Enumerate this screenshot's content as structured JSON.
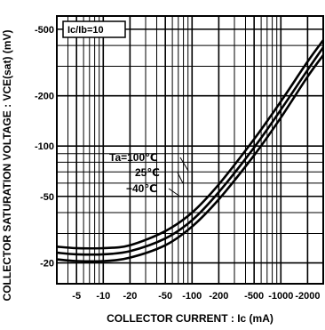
{
  "chart_data": {
    "type": "line",
    "condition_label": "Ic/Ib=10",
    "xlabel": "COLLECTOR CURRENT : Ic  (mA)",
    "ylabel": "COLLECTOR SATURATION VOLTAGE : VCE(sat)  (mV)",
    "x_scale": "log",
    "y_scale": "log",
    "xlim": [
      -3,
      -3000
    ],
    "ylim": [
      -15,
      -600
    ],
    "x_ticks": [
      {
        "value": -5,
        "label": "-5"
      },
      {
        "value": -10,
        "label": "-10"
      },
      {
        "value": -20,
        "label": "-20"
      },
      {
        "value": -50,
        "label": "-50"
      },
      {
        "value": -100,
        "label": "-100"
      },
      {
        "value": -200,
        "label": "-200"
      },
      {
        "value": -500,
        "label": "-500"
      },
      {
        "value": -1000,
        "label": "-1000"
      },
      {
        "value": -2000,
        "label": "-2000"
      }
    ],
    "y_ticks": [
      {
        "value": -20,
        "label": "-20"
      },
      {
        "value": -50,
        "label": "-50"
      },
      {
        "value": -100,
        "label": "-100"
      },
      {
        "value": -200,
        "label": "-200"
      },
      {
        "value": -500,
        "label": "-500"
      }
    ],
    "grid": true,
    "legend": "inline labels at left of curves",
    "series": [
      {
        "name": "Ta=100℃",
        "x": [
          -3,
          -5,
          -10,
          -20,
          -50,
          -100,
          -200,
          -500,
          -1000,
          -2000,
          -3000
        ],
        "y": [
          -25,
          -24.5,
          -24.5,
          -25.5,
          -31,
          -40,
          -59,
          -110,
          -185,
          -320,
          -430
        ]
      },
      {
        "name": "25℃",
        "x": [
          -3,
          -5,
          -10,
          -20,
          -50,
          -100,
          -200,
          -500,
          -1000,
          -2000,
          -3000
        ],
        "y": [
          -23,
          -22.5,
          -22.5,
          -23.5,
          -28,
          -36,
          -53,
          -98,
          -165,
          -285,
          -390
        ]
      },
      {
        "name": "−40℃",
        "x": [
          -3,
          -5,
          -10,
          -20,
          -50,
          -100,
          -200,
          -500,
          -1000,
          -2000,
          -3000
        ],
        "y": [
          -21,
          -20.5,
          -20.5,
          -21.5,
          -25.5,
          -33,
          -48,
          -88,
          -148,
          -260,
          -350
        ]
      }
    ]
  }
}
